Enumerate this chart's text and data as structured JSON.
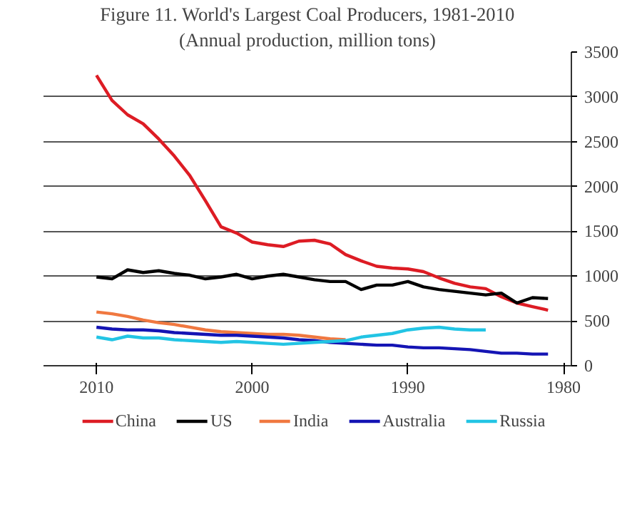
{
  "chart_data": {
    "type": "line",
    "title": "Figure 11. World's Largest Coal Producers, 1981-2010",
    "subtitle": "(Annual production, million tons)",
    "x": [
      1981,
      1982,
      1983,
      1984,
      1985,
      1986,
      1987,
      1988,
      1989,
      1990,
      1991,
      1992,
      1993,
      1994,
      1995,
      1996,
      1997,
      1998,
      1999,
      2000,
      2001,
      2002,
      2003,
      2004,
      2005,
      2006,
      2007,
      2008,
      2009,
      2010
    ],
    "xlim": [
      2013.4,
      1979.5
    ],
    "xticks": [
      1980,
      1990,
      2000,
      2010
    ],
    "ylim": [
      0,
      3500
    ],
    "yticks": [
      0,
      500,
      1000,
      1500,
      2000,
      2500,
      3000,
      3500
    ],
    "grid": "y",
    "legend": "bottom",
    "marker": "none",
    "line_style": "solid",
    "series": [
      {
        "name": "China",
        "color": "#dd1c24",
        "values": [
          620,
          660,
          700,
          770,
          860,
          880,
          920,
          980,
          1050,
          1080,
          1090,
          1110,
          1170,
          1240,
          1360,
          1400,
          1390,
          1330,
          1350,
          1380,
          1480,
          1550,
          1840,
          2120,
          2340,
          2530,
          2700,
          2800,
          2960,
          3240
        ]
      },
      {
        "name": "US",
        "color": "#000000",
        "values": [
          750,
          760,
          700,
          810,
          790,
          810,
          830,
          850,
          880,
          940,
          900,
          900,
          850,
          940,
          940,
          960,
          990,
          1020,
          1000,
          970,
          1020,
          990,
          970,
          1010,
          1030,
          1060,
          1040,
          1070,
          970,
          990
        ]
      },
      {
        "name": "India",
        "color": "#f07840",
        "values": [
          null,
          null,
          null,
          null,
          null,
          null,
          null,
          null,
          null,
          null,
          null,
          null,
          null,
          290,
          300,
          320,
          340,
          350,
          350,
          360,
          370,
          380,
          400,
          430,
          460,
          480,
          510,
          550,
          580,
          600
        ]
      },
      {
        "name": "Australia",
        "color": "#1414b4",
        "values": [
          130,
          130,
          140,
          140,
          160,
          180,
          190,
          200,
          200,
          210,
          230,
          230,
          240,
          250,
          260,
          280,
          290,
          310,
          320,
          330,
          340,
          340,
          350,
          360,
          370,
          390,
          400,
          400,
          410,
          430
        ]
      },
      {
        "name": "Russia",
        "color": "#22c4e4",
        "values": [
          null,
          null,
          null,
          null,
          400,
          400,
          410,
          430,
          420,
          400,
          360,
          340,
          320,
          280,
          270,
          260,
          250,
          240,
          250,
          260,
          270,
          260,
          270,
          280,
          290,
          310,
          310,
          330,
          290,
          320
        ]
      }
    ]
  }
}
